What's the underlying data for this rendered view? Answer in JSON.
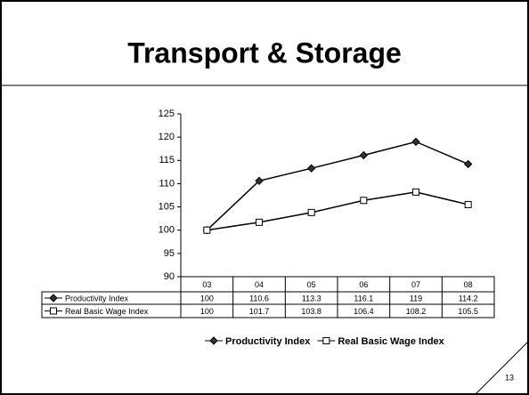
{
  "title": "Transport & Storage",
  "page_number": "13",
  "chart_data": {
    "type": "line",
    "categories": [
      "03",
      "04",
      "05",
      "06",
      "07",
      "08"
    ],
    "series": [
      {
        "name": "Productivity Index",
        "color": "#000000",
        "marker": "diamond",
        "marker_fill": "#333333",
        "values": [
          100,
          110.6,
          113.3,
          116.1,
          119,
          114.2
        ]
      },
      {
        "name": "Real Basic Wage Index",
        "color": "#000000",
        "marker": "square",
        "marker_fill": "#ffffff",
        "values": [
          100,
          101.7,
          103.8,
          106.4,
          108.2,
          105.5
        ]
      }
    ],
    "ylim": [
      90,
      125
    ],
    "yticks": [
      90,
      95,
      100,
      105,
      110,
      115,
      120,
      125
    ],
    "grid": false,
    "legend": "bottom"
  }
}
